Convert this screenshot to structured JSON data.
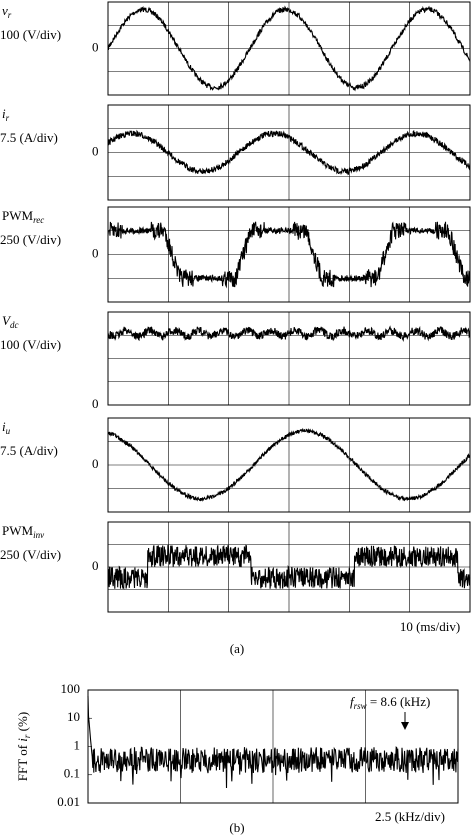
{
  "figure_a": {
    "panels": [
      {
        "symbol": "v",
        "sub": "r",
        "scale": "100 (V/div)",
        "zero": "0"
      },
      {
        "symbol": "i",
        "sub": "r",
        "scale": "7.5 (A/div)",
        "zero": "0"
      },
      {
        "symbol": "PWM",
        "sub": "rec",
        "scale": "250 (V/div)",
        "zero": "0"
      },
      {
        "symbol": "V",
        "sub": "dc",
        "scale": "100 (V/div)",
        "zero": "0"
      },
      {
        "symbol": "i",
        "sub": "u",
        "scale": "7.5 (A/div)",
        "zero": "0"
      },
      {
        "symbol": "PWM",
        "sub": "inv",
        "scale": "250 (V/div)",
        "zero": "0"
      }
    ],
    "time_scale": "10 (ms/div)",
    "caption": "(a)"
  },
  "figure_b": {
    "y_label": {
      "pre": "FFT of ",
      "symbol": "i",
      "sub": "r",
      "post": " (%)"
    },
    "yticks": [
      100,
      10,
      1,
      0.1,
      0.01
    ],
    "annotation": {
      "symbol": "f",
      "sub": "rsw",
      "text": " = 8.6 (kHz)"
    },
    "freq_scale": "2.5 (kHz/div)",
    "caption": "(b)"
  }
}
